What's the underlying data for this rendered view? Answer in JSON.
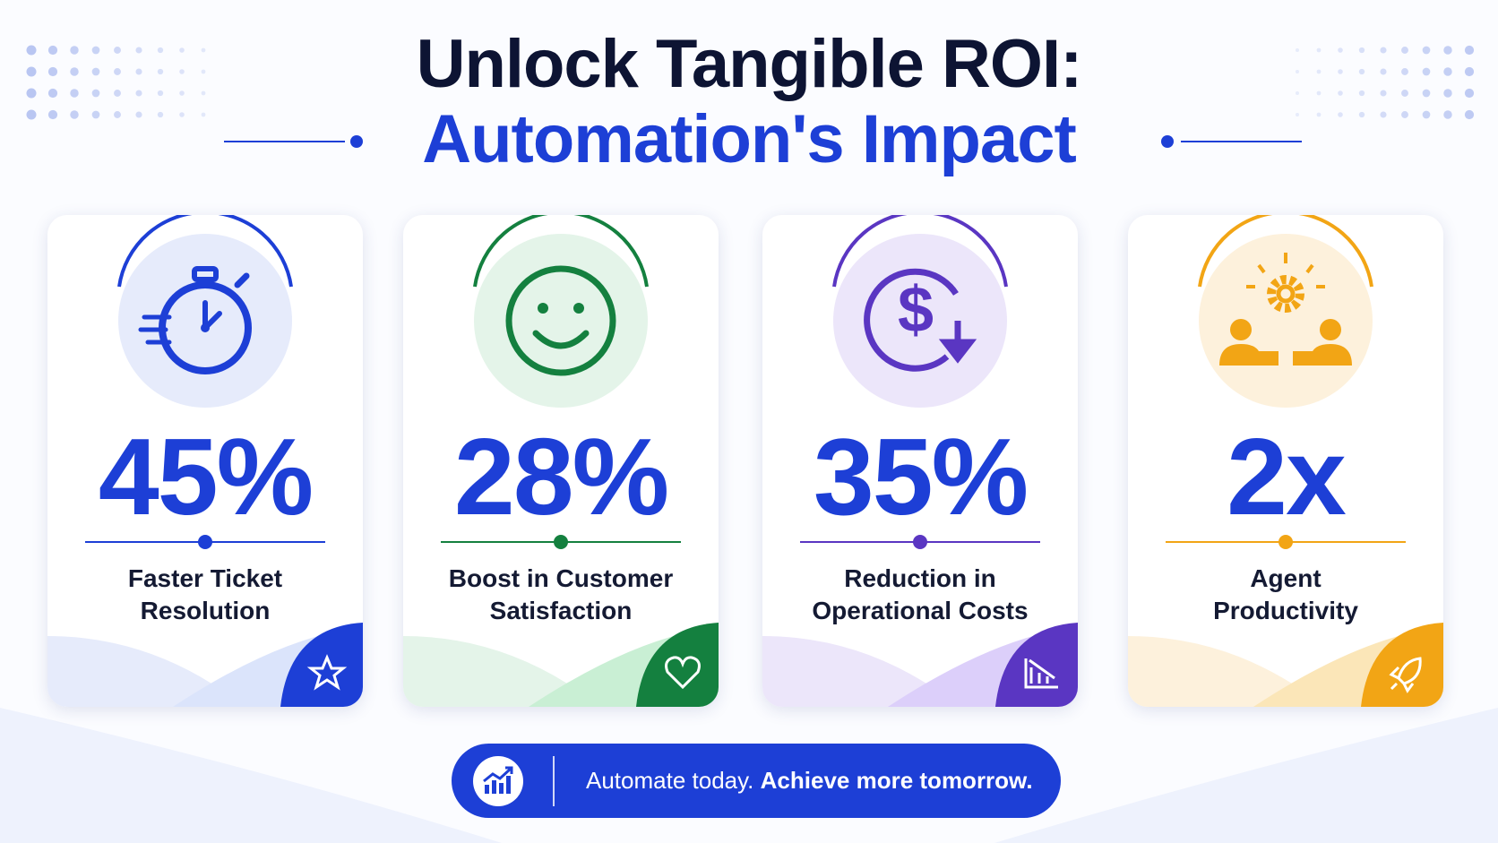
{
  "header": {
    "title_line1": "Unlock Tangible ROI:",
    "title_line2": "Automation's Impact"
  },
  "cards": [
    {
      "stat": "45%",
      "label_lines": [
        "Faster Ticket",
        "Resolution"
      ]
    },
    {
      "stat": "28%",
      "label_lines": [
        "Boost in Customer",
        "Satisfaction"
      ]
    },
    {
      "stat": "35%",
      "label_lines": [
        "Reduction in",
        "Operational Costs"
      ]
    },
    {
      "stat": "2x",
      "label_lines": [
        "Agent",
        "Productivity"
      ]
    }
  ],
  "banner": {
    "text_regular": "Automate today.",
    "text_bold": "Achieve more tomorrow."
  }
}
